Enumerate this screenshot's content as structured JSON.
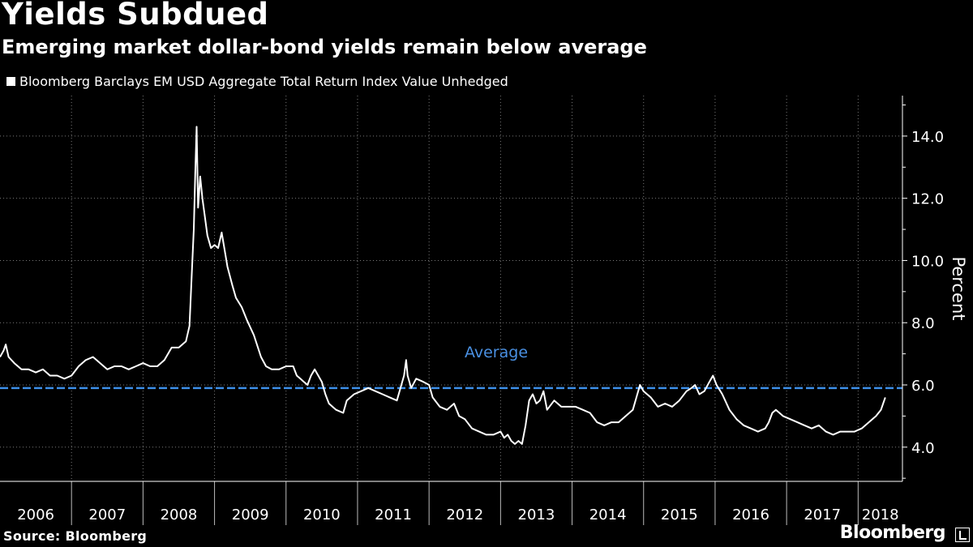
{
  "chart_data": {
    "type": "line",
    "title": "Yields Subdued",
    "subtitle": "Emerging market dollar-bond yields remain below average",
    "legend": [
      "Bloomberg Barclays EM USD Aggregate Total Return Index Value Unhedged"
    ],
    "ylabel": "Percent",
    "xlabel": "",
    "ylim": [
      2.9,
      15.3
    ],
    "yticks": [
      4.0,
      6.0,
      8.0,
      10.0,
      12.0,
      14.0
    ],
    "ytick_labels": [
      "4.0",
      "6.0",
      "8.0",
      "10.0",
      "12.0",
      "14.0"
    ],
    "x_start": 2006.0,
    "x_end": 2018.62,
    "x_categories": [
      "2006",
      "2007",
      "2008",
      "2009",
      "2010",
      "2011",
      "2012",
      "2013",
      "2014",
      "2015",
      "2016",
      "2017",
      "2018"
    ],
    "average": {
      "value": 5.9,
      "label": "Average",
      "color": "#3d8fe8"
    },
    "series": [
      {
        "name": "Bloomberg Barclays EM USD Aggregate Total Return Index Value Unhedged",
        "color": "#ffffff",
        "points": [
          [
            2006.0,
            6.9
          ],
          [
            2006.05,
            7.1
          ],
          [
            2006.08,
            7.3
          ],
          [
            2006.12,
            6.9
          ],
          [
            2006.2,
            6.7
          ],
          [
            2006.3,
            6.5
          ],
          [
            2006.4,
            6.5
          ],
          [
            2006.5,
            6.4
          ],
          [
            2006.6,
            6.5
          ],
          [
            2006.7,
            6.3
          ],
          [
            2006.8,
            6.3
          ],
          [
            2006.9,
            6.2
          ],
          [
            2007.0,
            6.3
          ],
          [
            2007.1,
            6.6
          ],
          [
            2007.2,
            6.8
          ],
          [
            2007.3,
            6.9
          ],
          [
            2007.4,
            6.7
          ],
          [
            2007.5,
            6.5
          ],
          [
            2007.6,
            6.6
          ],
          [
            2007.7,
            6.6
          ],
          [
            2007.8,
            6.5
          ],
          [
            2007.9,
            6.6
          ],
          [
            2008.0,
            6.7
          ],
          [
            2008.1,
            6.6
          ],
          [
            2008.2,
            6.6
          ],
          [
            2008.3,
            6.8
          ],
          [
            2008.4,
            7.2
          ],
          [
            2008.5,
            7.2
          ],
          [
            2008.6,
            7.4
          ],
          [
            2008.65,
            7.9
          ],
          [
            2008.68,
            9.5
          ],
          [
            2008.71,
            11.0
          ],
          [
            2008.73,
            12.8
          ],
          [
            2008.75,
            14.3
          ],
          [
            2008.77,
            11.7
          ],
          [
            2008.8,
            12.7
          ],
          [
            2008.83,
            12.0
          ],
          [
            2008.86,
            11.5
          ],
          [
            2008.9,
            10.8
          ],
          [
            2008.95,
            10.4
          ],
          [
            2009.0,
            10.5
          ],
          [
            2009.05,
            10.4
          ],
          [
            2009.1,
            10.9
          ],
          [
            2009.13,
            10.5
          ],
          [
            2009.18,
            9.8
          ],
          [
            2009.25,
            9.2
          ],
          [
            2009.3,
            8.8
          ],
          [
            2009.38,
            8.5
          ],
          [
            2009.45,
            8.1
          ],
          [
            2009.55,
            7.6
          ],
          [
            2009.65,
            6.9
          ],
          [
            2009.72,
            6.6
          ],
          [
            2009.8,
            6.5
          ],
          [
            2009.9,
            6.5
          ],
          [
            2010.0,
            6.6
          ],
          [
            2010.1,
            6.6
          ],
          [
            2010.15,
            6.3
          ],
          [
            2010.2,
            6.2
          ],
          [
            2010.25,
            6.1
          ],
          [
            2010.3,
            6.0
          ],
          [
            2010.35,
            6.3
          ],
          [
            2010.4,
            6.5
          ],
          [
            2010.45,
            6.3
          ],
          [
            2010.5,
            6.1
          ],
          [
            2010.55,
            5.7
          ],
          [
            2010.6,
            5.4
          ],
          [
            2010.7,
            5.2
          ],
          [
            2010.8,
            5.1
          ],
          [
            2010.85,
            5.5
          ],
          [
            2010.95,
            5.7
          ],
          [
            2011.05,
            5.8
          ],
          [
            2011.15,
            5.9
          ],
          [
            2011.25,
            5.8
          ],
          [
            2011.35,
            5.7
          ],
          [
            2011.45,
            5.6
          ],
          [
            2011.55,
            5.5
          ],
          [
            2011.6,
            5.9
          ],
          [
            2011.65,
            6.3
          ],
          [
            2011.68,
            6.8
          ],
          [
            2011.7,
            6.3
          ],
          [
            2011.75,
            5.9
          ],
          [
            2011.82,
            6.2
          ],
          [
            2011.92,
            6.1
          ],
          [
            2012.0,
            6.0
          ],
          [
            2012.05,
            5.6
          ],
          [
            2012.15,
            5.3
          ],
          [
            2012.25,
            5.2
          ],
          [
            2012.35,
            5.4
          ],
          [
            2012.42,
            5.0
          ],
          [
            2012.5,
            4.9
          ],
          [
            2012.6,
            4.6
          ],
          [
            2012.7,
            4.5
          ],
          [
            2012.8,
            4.4
          ],
          [
            2012.9,
            4.4
          ],
          [
            2013.0,
            4.5
          ],
          [
            2013.05,
            4.3
          ],
          [
            2013.1,
            4.4
          ],
          [
            2013.15,
            4.2
          ],
          [
            2013.2,
            4.1
          ],
          [
            2013.25,
            4.2
          ],
          [
            2013.3,
            4.1
          ],
          [
            2013.35,
            4.7
          ],
          [
            2013.4,
            5.5
          ],
          [
            2013.45,
            5.7
          ],
          [
            2013.5,
            5.4
          ],
          [
            2013.55,
            5.5
          ],
          [
            2013.6,
            5.8
          ],
          [
            2013.65,
            5.2
          ],
          [
            2013.75,
            5.5
          ],
          [
            2013.85,
            5.3
          ],
          [
            2013.95,
            5.3
          ],
          [
            2014.05,
            5.3
          ],
          [
            2014.15,
            5.2
          ],
          [
            2014.25,
            5.1
          ],
          [
            2014.35,
            4.8
          ],
          [
            2014.45,
            4.7
          ],
          [
            2014.55,
            4.8
          ],
          [
            2014.65,
            4.8
          ],
          [
            2014.75,
            5.0
          ],
          [
            2014.85,
            5.2
          ],
          [
            2014.9,
            5.6
          ],
          [
            2014.95,
            6.0
          ],
          [
            2015.0,
            5.8
          ],
          [
            2015.1,
            5.6
          ],
          [
            2015.2,
            5.3
          ],
          [
            2015.3,
            5.4
          ],
          [
            2015.4,
            5.3
          ],
          [
            2015.5,
            5.5
          ],
          [
            2015.6,
            5.8
          ],
          [
            2015.67,
            5.9
          ],
          [
            2015.72,
            6.0
          ],
          [
            2015.78,
            5.7
          ],
          [
            2015.85,
            5.8
          ],
          [
            2015.92,
            6.1
          ],
          [
            2015.97,
            6.3
          ],
          [
            2016.02,
            6.0
          ],
          [
            2016.1,
            5.7
          ],
          [
            2016.2,
            5.2
          ],
          [
            2016.3,
            4.9
          ],
          [
            2016.4,
            4.7
          ],
          [
            2016.5,
            4.6
          ],
          [
            2016.6,
            4.5
          ],
          [
            2016.7,
            4.6
          ],
          [
            2016.75,
            4.8
          ],
          [
            2016.8,
            5.1
          ],
          [
            2016.85,
            5.2
          ],
          [
            2016.95,
            5.0
          ],
          [
            2017.05,
            4.9
          ],
          [
            2017.15,
            4.8
          ],
          [
            2017.25,
            4.7
          ],
          [
            2017.35,
            4.6
          ],
          [
            2017.45,
            4.7
          ],
          [
            2017.55,
            4.5
          ],
          [
            2017.65,
            4.4
          ],
          [
            2017.75,
            4.5
          ],
          [
            2017.85,
            4.5
          ],
          [
            2017.95,
            4.5
          ],
          [
            2018.05,
            4.6
          ],
          [
            2018.15,
            4.8
          ],
          [
            2018.25,
            5.0
          ],
          [
            2018.32,
            5.2
          ],
          [
            2018.38,
            5.6
          ]
        ]
      }
    ]
  },
  "footer": {
    "source": "Source: Bloomberg",
    "brand": "Bloomberg"
  }
}
